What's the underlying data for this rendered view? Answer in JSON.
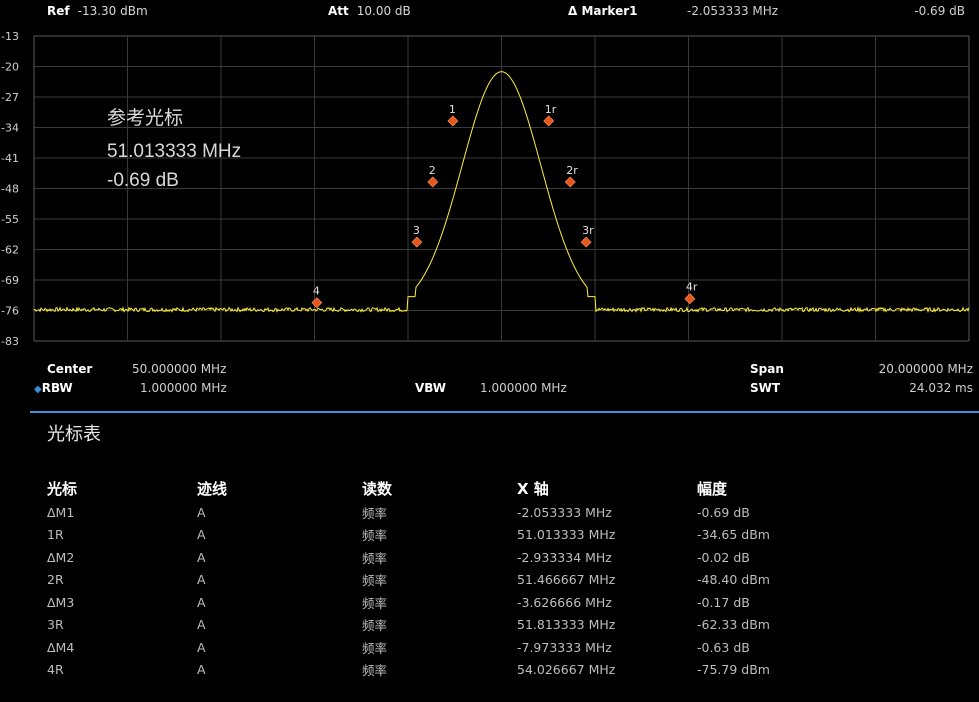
{
  "header": {
    "ref_label": "Ref",
    "ref_value": "-13.30 dBm",
    "att_label": "Att",
    "att_value": "10.00 dB",
    "marker_label": "Δ Marker1",
    "marker_freq": "-2.053333  MHz",
    "marker_amp": "-0.69 dB"
  },
  "overlay": {
    "title": "参考光标",
    "freq": "51.013333  MHz",
    "amp": "-0.69 dB"
  },
  "chart_data": {
    "type": "line",
    "y_ticks": [
      "-13",
      "-20",
      "-27",
      "-34",
      "-41",
      "-48",
      "-55",
      "-62",
      "-69",
      "-76",
      "-83"
    ],
    "ylim": [
      -83,
      -13
    ],
    "xlim": [
      40,
      60
    ],
    "grid": true,
    "trace_color": "#ffef3a",
    "marker_color": "#e8561c",
    "markers": [
      {
        "label": "1",
        "x": 48.96,
        "y": -32.5
      },
      {
        "label": "2",
        "x": 48.53,
        "y": -46.5
      },
      {
        "label": "3",
        "x": 48.19,
        "y": -60.3
      },
      {
        "label": "4",
        "x": 46.05,
        "y": -74.2
      },
      {
        "label": "1r",
        "x": 51.01,
        "y": -32.5
      },
      {
        "label": "2r",
        "x": 51.47,
        "y": -46.5
      },
      {
        "label": "3r",
        "x": 51.81,
        "y": -60.3
      },
      {
        "label": "4r",
        "x": 54.03,
        "y": -73.3
      }
    ]
  },
  "footer": {
    "center_label": "Center",
    "center_value": "50.000000  MHz",
    "span_label": "Span",
    "span_value": "20.000000  MHz",
    "rbw_label": "RBW",
    "rbw_value": "1.000000  MHz",
    "vbw_label": "VBW",
    "vbw_value": "1.000000  MHz",
    "swt_label": "SWT",
    "swt_value": "24.032 ms"
  },
  "marker_table": {
    "title": "光标表",
    "headers": [
      "光标",
      "迹线",
      "读数",
      "X 轴",
      "幅度"
    ],
    "rows": [
      [
        "ΔM1",
        "A",
        "频率",
        "-2.053333  MHz",
        "-0.69 dB"
      ],
      [
        "1R",
        "A",
        "频率",
        "51.013333  MHz",
        "-34.65 dBm"
      ],
      [
        "ΔM2",
        "A",
        "频率",
        "-2.933334  MHz",
        "-0.02 dB"
      ],
      [
        "2R",
        "A",
        "频率",
        "51.466667  MHz",
        "-48.40 dBm"
      ],
      [
        "ΔM3",
        "A",
        "频率",
        "-3.626666  MHz",
        "-0.17 dB"
      ],
      [
        "3R",
        "A",
        "频率",
        "51.813333  MHz",
        "-62.33 dBm"
      ],
      [
        "ΔM4",
        "A",
        "频率",
        "-7.973333  MHz",
        "-0.63 dB"
      ],
      [
        "4R",
        "A",
        "频率",
        "54.026667  MHz",
        "-75.79 dBm"
      ]
    ]
  }
}
